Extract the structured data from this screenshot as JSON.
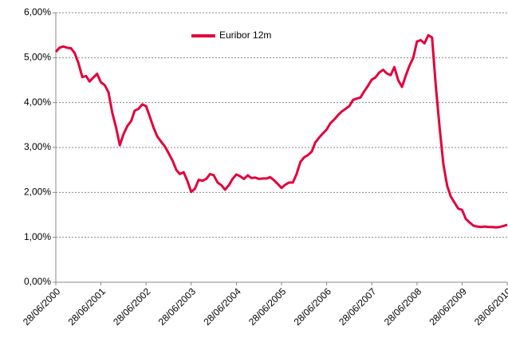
{
  "chart_data": {
    "type": "line",
    "x": [
      "28/06/2000",
      "28/07/2000",
      "28/08/2000",
      "28/09/2000",
      "28/10/2000",
      "28/11/2000",
      "28/12/2000",
      "28/01/2001",
      "28/02/2001",
      "28/03/2001",
      "28/04/2001",
      "28/05/2001",
      "28/06/2001",
      "28/07/2001",
      "28/08/2001",
      "28/09/2001",
      "28/10/2001",
      "28/11/2001",
      "28/12/2001",
      "28/01/2002",
      "28/02/2002",
      "28/03/2002",
      "28/04/2002",
      "28/05/2002",
      "28/06/2002",
      "28/07/2002",
      "28/08/2002",
      "28/09/2002",
      "28/10/2002",
      "28/11/2002",
      "28/12/2002",
      "28/01/2003",
      "28/02/2003",
      "28/03/2003",
      "28/04/2003",
      "28/05/2003",
      "28/06/2003",
      "28/07/2003",
      "28/08/2003",
      "28/09/2003",
      "28/10/2003",
      "28/11/2003",
      "28/12/2003",
      "28/01/2004",
      "28/02/2004",
      "28/03/2004",
      "28/04/2004",
      "28/05/2004",
      "28/06/2004",
      "28/07/2004",
      "28/08/2004",
      "28/09/2004",
      "28/10/2004",
      "28/11/2004",
      "28/12/2004",
      "28/01/2005",
      "28/02/2005",
      "28/03/2005",
      "28/04/2005",
      "28/05/2005",
      "28/06/2005",
      "28/07/2005",
      "28/08/2005",
      "28/09/2005",
      "28/10/2005",
      "28/11/2005",
      "28/12/2005",
      "28/01/2006",
      "28/02/2006",
      "28/03/2006",
      "28/04/2006",
      "28/05/2006",
      "28/06/2006",
      "28/07/2006",
      "28/08/2006",
      "28/09/2006",
      "28/10/2006",
      "28/11/2006",
      "28/12/2006",
      "28/01/2007",
      "28/02/2007",
      "28/03/2007",
      "28/04/2007",
      "28/05/2007",
      "28/06/2007",
      "28/07/2007",
      "28/08/2007",
      "28/09/2007",
      "28/10/2007",
      "28/11/2007",
      "28/12/2007",
      "28/01/2008",
      "28/02/2008",
      "28/03/2008",
      "28/04/2008",
      "28/05/2008",
      "28/06/2008",
      "28/07/2008",
      "28/08/2008",
      "28/09/2008",
      "28/10/2008",
      "28/11/2008",
      "28/12/2008",
      "28/01/2009",
      "28/02/2009",
      "28/03/2009",
      "28/04/2009",
      "28/05/2009",
      "28/06/2009",
      "28/07/2009",
      "28/08/2009",
      "28/09/2009",
      "28/10/2009",
      "28/11/2009",
      "28/12/2009",
      "28/01/2010",
      "28/02/2010",
      "28/03/2010",
      "28/04/2010",
      "28/05/2010",
      "28/06/2010"
    ],
    "series": [
      {
        "name": "Euribor 12m",
        "color": "#e3003a",
        "values": [
          5.13,
          5.22,
          5.25,
          5.22,
          5.21,
          5.1,
          4.88,
          4.57,
          4.59,
          4.47,
          4.56,
          4.64,
          4.45,
          4.39,
          4.23,
          3.77,
          3.45,
          3.05,
          3.3,
          3.48,
          3.59,
          3.82,
          3.86,
          3.96,
          3.92,
          3.69,
          3.44,
          3.24,
          3.13,
          3.02,
          2.87,
          2.71,
          2.5,
          2.41,
          2.45,
          2.26,
          2.01,
          2.08,
          2.28,
          2.26,
          2.3,
          2.41,
          2.38,
          2.22,
          2.16,
          2.06,
          2.16,
          2.3,
          2.4,
          2.36,
          2.3,
          2.38,
          2.32,
          2.33,
          2.3,
          2.31,
          2.31,
          2.34,
          2.27,
          2.19,
          2.1,
          2.17,
          2.22,
          2.22,
          2.41,
          2.68,
          2.78,
          2.83,
          2.91,
          3.11,
          3.22,
          3.31,
          3.4,
          3.54,
          3.62,
          3.72,
          3.8,
          3.86,
          3.92,
          4.06,
          4.09,
          4.11,
          4.25,
          4.37,
          4.51,
          4.56,
          4.67,
          4.73,
          4.65,
          4.61,
          4.79,
          4.5,
          4.35,
          4.59,
          4.82,
          4.99,
          5.36,
          5.39,
          5.32,
          5.5,
          5.45,
          4.35,
          3.45,
          2.62,
          2.14,
          1.91,
          1.77,
          1.64,
          1.61,
          1.41,
          1.33,
          1.26,
          1.24,
          1.23,
          1.24,
          1.23,
          1.23,
          1.22,
          1.23,
          1.25,
          1.28
        ]
      }
    ],
    "xlim": [
      "28/06/2000",
      "28/06/2010"
    ],
    "xticks": [
      "28/06/2000",
      "28/06/2001",
      "28/06/2002",
      "28/06/2003",
      "28/06/2004",
      "28/06/2005",
      "28/06/2006",
      "28/06/2007",
      "28/06/2008",
      "28/06/2009",
      "28/06/2010"
    ],
    "ylim": [
      0,
      6
    ],
    "yticks": [
      {
        "value": 0,
        "label": "0,00%"
      },
      {
        "value": 1,
        "label": "1,00%"
      },
      {
        "value": 2,
        "label": "2,00%"
      },
      {
        "value": 3,
        "label": "3,00%"
      },
      {
        "value": 4,
        "label": "4,00%"
      },
      {
        "value": 5,
        "label": "5,00%"
      },
      {
        "value": 6,
        "label": "6,00%"
      }
    ],
    "grid": true
  }
}
